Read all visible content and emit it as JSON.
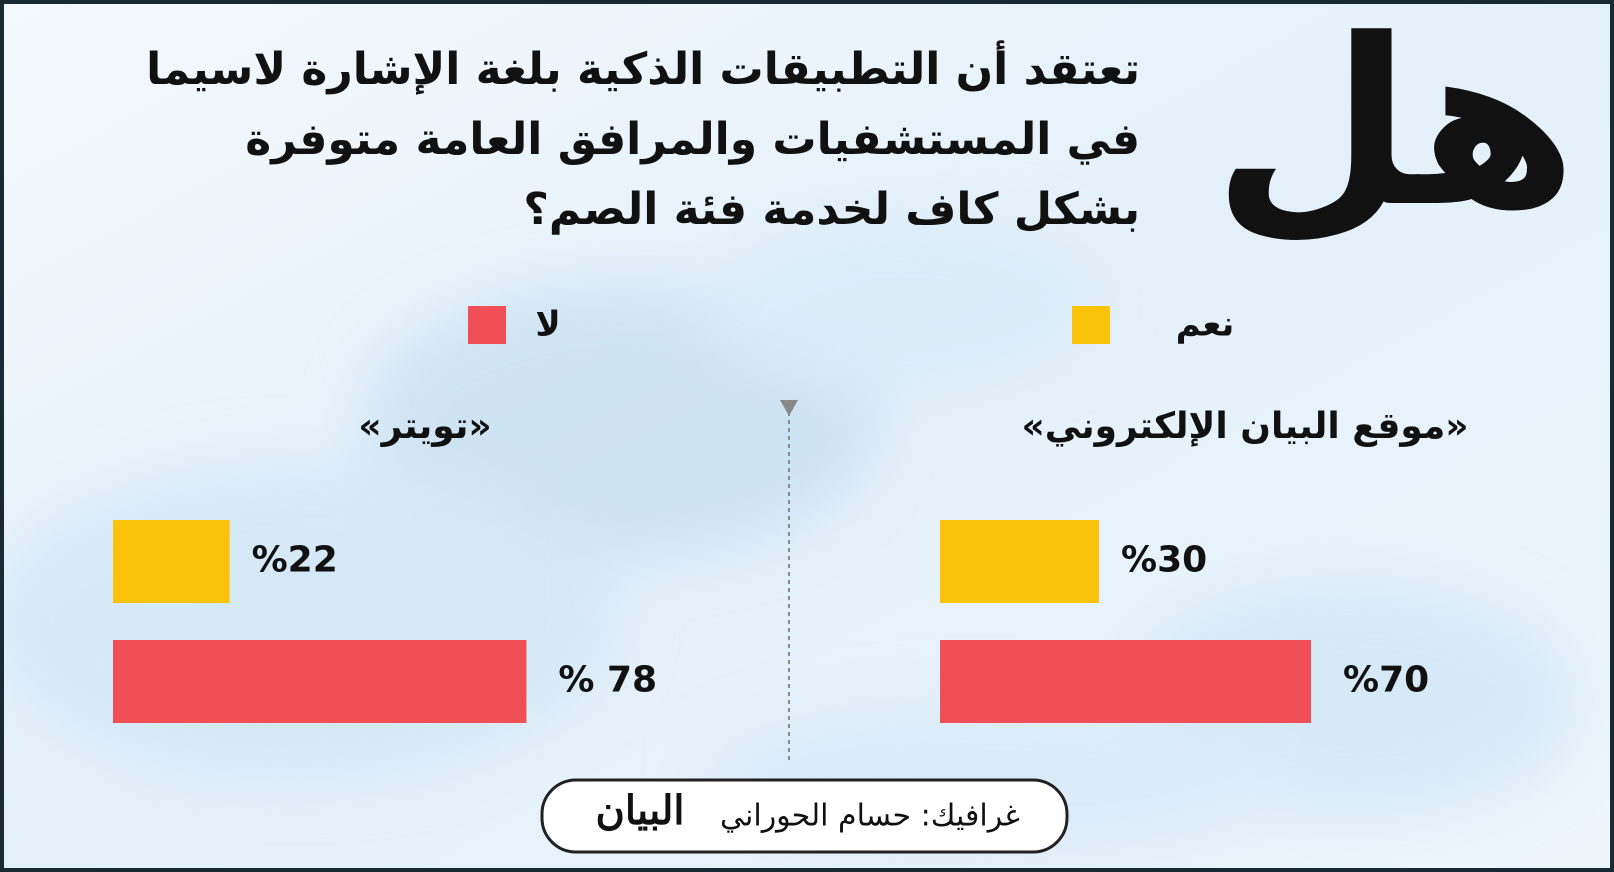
{
  "header": {
    "lead": "هل",
    "question": [
      "تعتقد أن التطبيقات الذكية بلغة الإشارة لاسيما",
      "في المستشفيات والمرافق العامة متوفرة",
      "بشكل كاف لخدمة فئة الصم؟"
    ]
  },
  "chart_data": {
    "type": "bar",
    "orientation": "horizontal",
    "categories": [
      "«موقع البيان الإلكتروني»",
      "«تويتر»"
    ],
    "series": [
      {
        "name": "نعم",
        "color": "#fcc30b",
        "values": [
          30,
          22
        ],
        "value_labels": [
          "%30",
          "%22"
        ]
      },
      {
        "name": "لا",
        "color": "#ef4f55",
        "values": [
          70,
          78
        ],
        "value_labels": [
          "%70",
          "% 78"
        ]
      }
    ],
    "xlim": [
      0,
      100
    ]
  },
  "footer": {
    "credit": "غرافيك: حسام الحوراني",
    "logo": "البيان"
  }
}
